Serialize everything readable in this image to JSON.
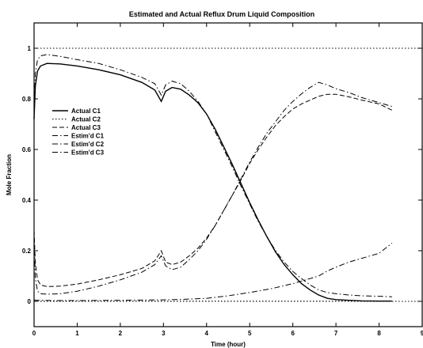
{
  "chart_data": {
    "type": "line",
    "title": "Estimated and Actual Reflux Drum Liquid Composition",
    "xlabel": "Time (hour)",
    "ylabel": "Mole Fraction",
    "xlim": [
      0,
      9
    ],
    "ylim": [
      -0.1,
      1.1
    ],
    "xticks": [
      "0",
      "1",
      "2",
      "3",
      "4",
      "5",
      "6",
      "7",
      "8",
      "9"
    ],
    "yticks": [
      "0",
      "0.2",
      "0.4",
      "0.6",
      "0.8",
      "1"
    ],
    "grid": false,
    "legend_position": "left",
    "reference_lines": [
      0,
      1
    ],
    "series": [
      {
        "name": "Actual C1",
        "style": "solid",
        "x": [
          0,
          0.03,
          0.08,
          0.15,
          0.3,
          0.6,
          1.0,
          1.5,
          2.0,
          2.5,
          2.8,
          2.95,
          3.05,
          3.2,
          3.4,
          3.6,
          3.8,
          4.0,
          4.2,
          4.4,
          4.6,
          4.8,
          5.0,
          5.2,
          5.4,
          5.6,
          5.8,
          6.0,
          6.2,
          6.4,
          6.6,
          6.8,
          7.0,
          7.3,
          7.6,
          8.0,
          8.3
        ],
        "y": [
          0.72,
          0.85,
          0.91,
          0.93,
          0.94,
          0.938,
          0.93,
          0.915,
          0.895,
          0.865,
          0.835,
          0.79,
          0.83,
          0.845,
          0.838,
          0.815,
          0.785,
          0.74,
          0.68,
          0.61,
          0.54,
          0.465,
          0.39,
          0.32,
          0.255,
          0.195,
          0.145,
          0.105,
          0.07,
          0.045,
          0.025,
          0.012,
          0.007,
          0.004,
          0.002,
          0.001,
          0.001
        ]
      },
      {
        "name": "Actual C2",
        "style": "dotted",
        "x": [
          0,
          0.1,
          0.5,
          1.0,
          2.0,
          3.0,
          4.0,
          5.0,
          6.0,
          7.0,
          8.3
        ],
        "y": [
          0.001,
          0.001,
          0.001,
          0.001,
          0.001,
          0.001,
          0.001,
          0.001,
          0.001,
          0.001,
          0.001
        ]
      },
      {
        "name": "Actual C3",
        "style": "dashed",
        "x": [
          0,
          0.03,
          0.08,
          0.15,
          0.3,
          0.6,
          1.0,
          1.5,
          2.0,
          2.5,
          2.8,
          2.95,
          3.05,
          3.2,
          3.4,
          3.6,
          3.8,
          4.0,
          4.2,
          4.4,
          4.6,
          4.8,
          5.0,
          5.2,
          5.4,
          5.6,
          5.8,
          6.0,
          6.2,
          6.4,
          6.6,
          6.8,
          7.0,
          7.3,
          7.6,
          8.0,
          8.3
        ],
        "y": [
          0.28,
          0.15,
          0.085,
          0.065,
          0.058,
          0.06,
          0.068,
          0.085,
          0.105,
          0.13,
          0.16,
          0.2,
          0.155,
          0.145,
          0.155,
          0.18,
          0.21,
          0.25,
          0.3,
          0.36,
          0.42,
          0.48,
          0.545,
          0.6,
          0.65,
          0.695,
          0.73,
          0.76,
          0.78,
          0.795,
          0.81,
          0.818,
          0.818,
          0.808,
          0.795,
          0.78,
          0.755
        ]
      },
      {
        "name": "Estim'd C1",
        "style": "dashdot",
        "x": [
          0,
          0.03,
          0.08,
          0.15,
          0.3,
          0.6,
          1.0,
          1.5,
          2.0,
          2.5,
          2.8,
          2.95,
          3.05,
          3.2,
          3.4,
          3.6,
          3.8,
          4.0,
          4.2,
          4.4,
          4.6,
          4.8,
          5.0,
          5.2,
          5.4,
          5.6,
          5.8,
          6.0,
          6.2,
          6.4,
          6.6,
          6.8,
          7.0,
          7.3,
          7.6,
          8.0,
          8.3
        ],
        "y": [
          0.75,
          0.9,
          0.955,
          0.97,
          0.975,
          0.968,
          0.955,
          0.94,
          0.915,
          0.885,
          0.86,
          0.815,
          0.855,
          0.87,
          0.86,
          0.83,
          0.79,
          0.74,
          0.67,
          0.6,
          0.53,
          0.455,
          0.385,
          0.315,
          0.255,
          0.2,
          0.155,
          0.118,
          0.09,
          0.065,
          0.045,
          0.035,
          0.03,
          0.025,
          0.022,
          0.02,
          0.018
        ]
      },
      {
        "name": "Estim'd C2",
        "style": "dashdot",
        "x": [
          0,
          0.1,
          0.5,
          1.0,
          2.0,
          3.0,
          3.5,
          4.0,
          4.5,
          5.0,
          5.5,
          6.0,
          6.3,
          6.6,
          6.8,
          7.0,
          7.3,
          7.6,
          8.0,
          8.3
        ],
        "y": [
          0.005,
          0.004,
          0.003,
          0.003,
          0.004,
          0.006,
          0.008,
          0.012,
          0.022,
          0.035,
          0.05,
          0.07,
          0.085,
          0.1,
          0.12,
          0.135,
          0.155,
          0.17,
          0.19,
          0.23
        ]
      },
      {
        "name": "Estim'd C3",
        "style": "dashdot",
        "x": [
          0,
          0.03,
          0.08,
          0.15,
          0.3,
          0.6,
          1.0,
          1.5,
          2.0,
          2.5,
          2.8,
          2.95,
          3.05,
          3.2,
          3.4,
          3.6,
          3.8,
          4.0,
          4.2,
          4.4,
          4.6,
          4.8,
          5.0,
          5.2,
          5.4,
          5.6,
          5.8,
          6.0,
          6.2,
          6.4,
          6.6,
          6.8,
          7.0,
          7.3,
          7.6,
          8.0,
          8.3
        ],
        "y": [
          0.25,
          0.09,
          0.04,
          0.03,
          0.028,
          0.03,
          0.04,
          0.06,
          0.085,
          0.115,
          0.145,
          0.18,
          0.14,
          0.125,
          0.135,
          0.165,
          0.2,
          0.245,
          0.3,
          0.36,
          0.42,
          0.485,
          0.55,
          0.61,
          0.665,
          0.71,
          0.755,
          0.79,
          0.82,
          0.845,
          0.865,
          0.855,
          0.84,
          0.825,
          0.805,
          0.785,
          0.77
        ]
      }
    ]
  }
}
